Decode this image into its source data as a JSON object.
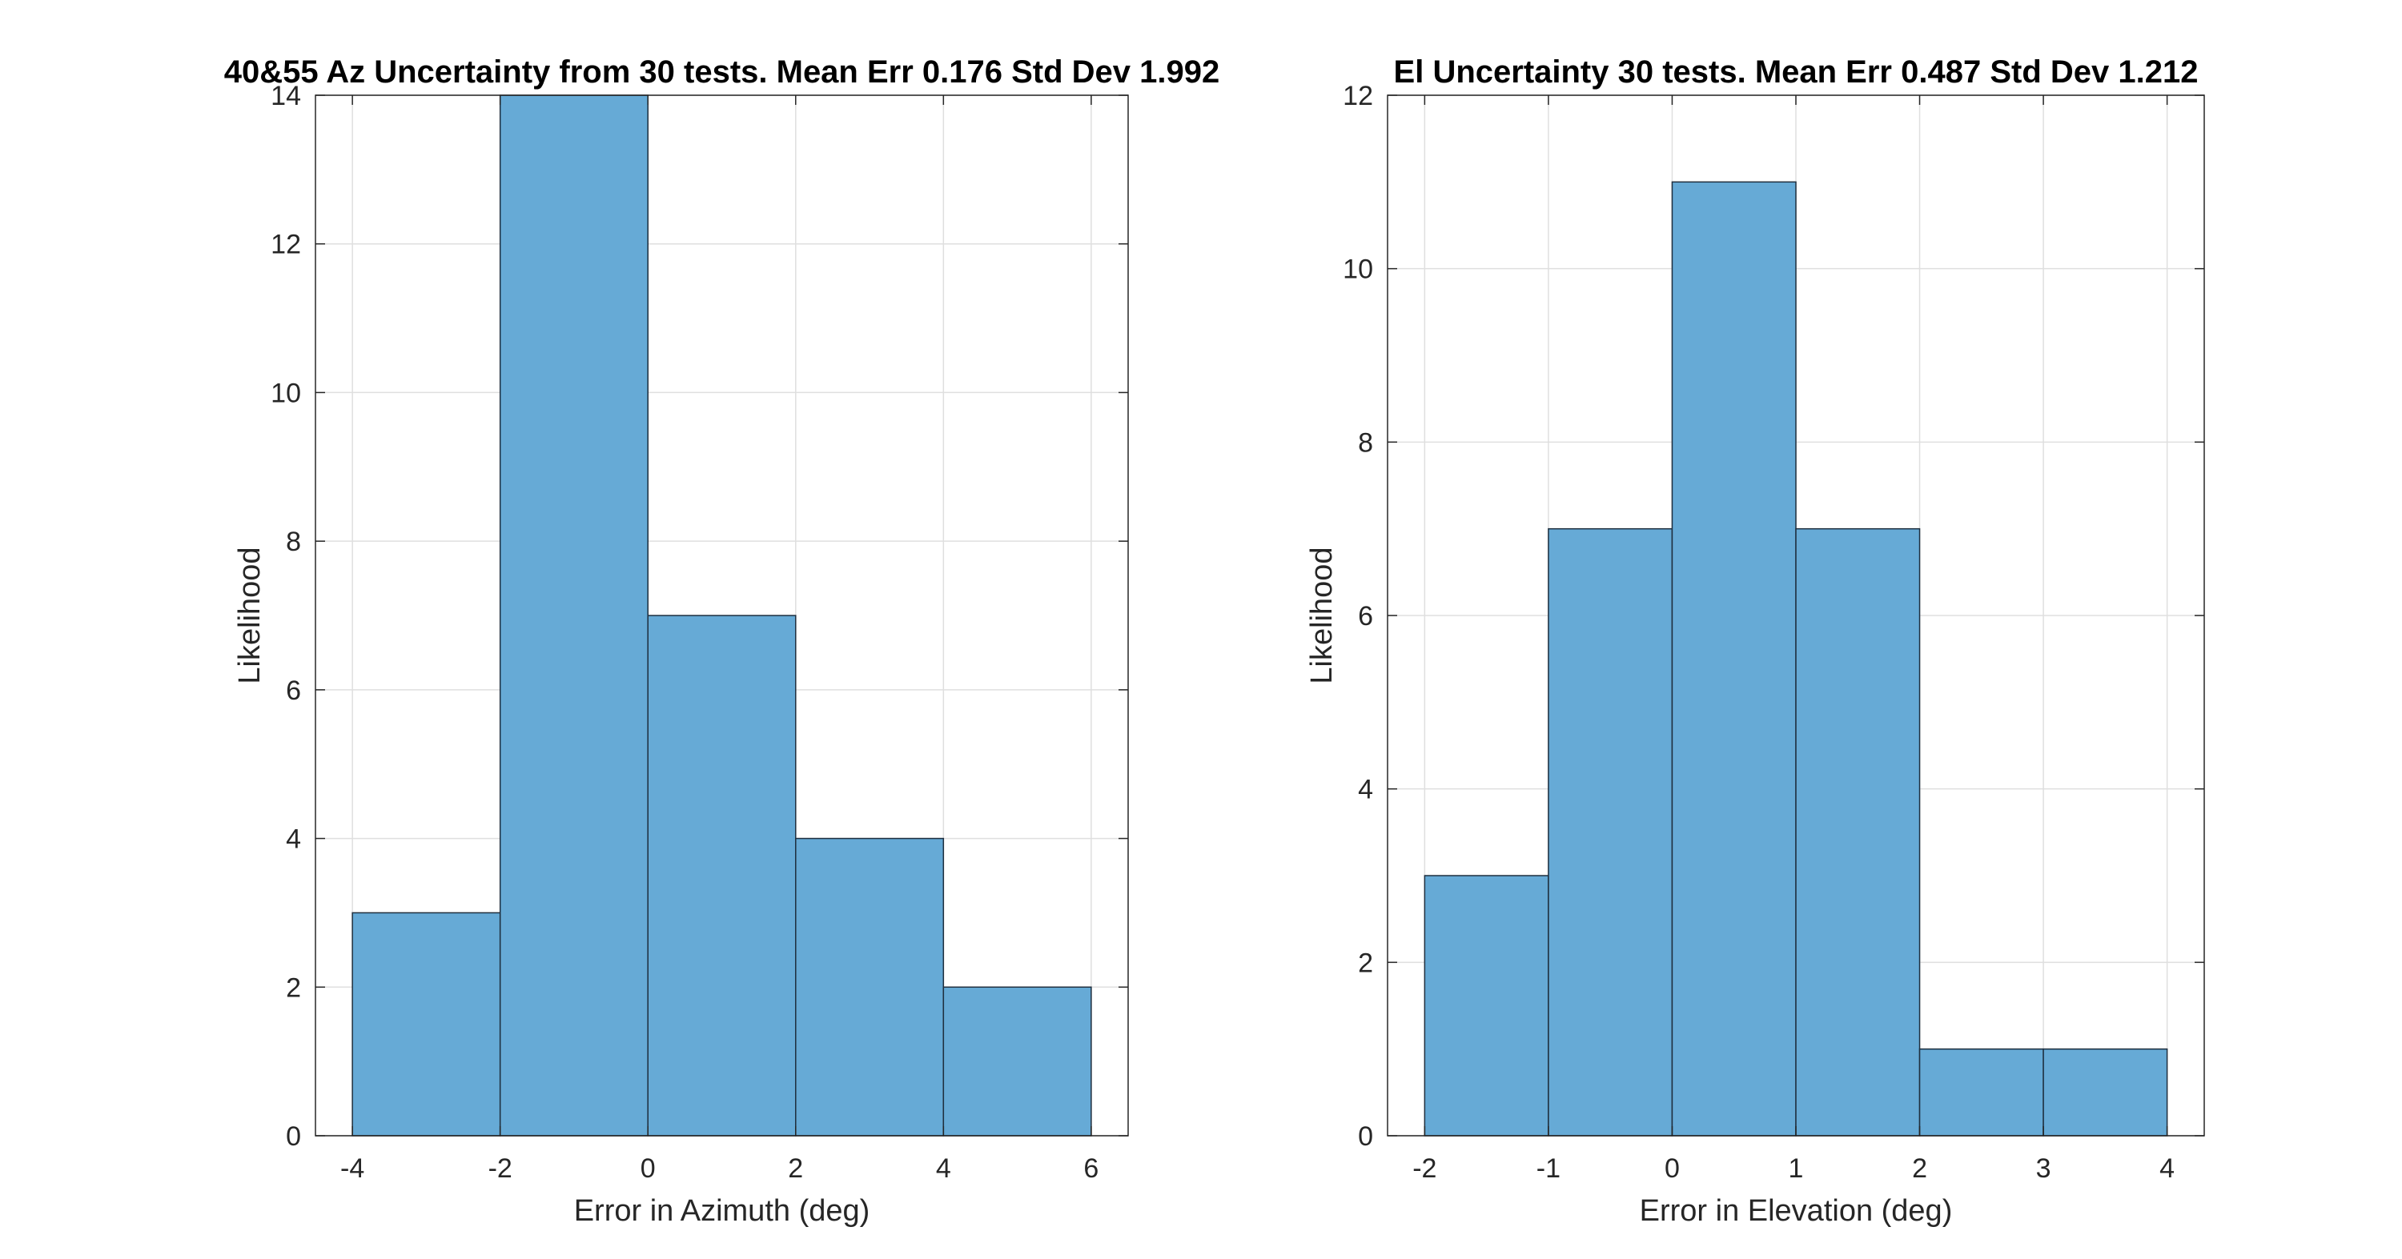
{
  "figure": {
    "background": "#ffffff"
  },
  "chart_data": [
    {
      "type": "bar",
      "subtype": "histogram",
      "title": "40&55 Az Uncertainty from 30 tests. Mean Err 0.176 Std Dev 1.992",
      "xlabel": "Error in Azimuth (deg)",
      "ylabel": "Likelihood",
      "bin_edges": [
        -4,
        -2,
        0,
        2,
        4,
        6
      ],
      "values": [
        3,
        14,
        7,
        4,
        2
      ],
      "xlim": [
        -4.5,
        6.5
      ],
      "ylim": [
        0,
        14
      ],
      "xticks": [
        -4,
        -2,
        0,
        2,
        4,
        6
      ],
      "yticks": [
        0,
        2,
        4,
        6,
        8,
        10,
        12,
        14
      ],
      "grid": true,
      "bar_color": "#66aad6",
      "edge_color": "#1f2f3f"
    },
    {
      "type": "bar",
      "subtype": "histogram",
      "title": "El Uncertainty 30 tests. Mean Err 0.487 Std Dev 1.212",
      "xlabel": "Error in Elevation (deg)",
      "ylabel": "Likelihood",
      "bin_edges": [
        -2,
        -1,
        0,
        1,
        2,
        3,
        4
      ],
      "values": [
        3,
        7,
        11,
        7,
        1,
        1
      ],
      "xlim": [
        -2.3,
        4.3
      ],
      "ylim": [
        0,
        12
      ],
      "xticks": [
        -2,
        -1,
        0,
        1,
        2,
        3,
        4
      ],
      "yticks": [
        0,
        2,
        4,
        6,
        8,
        10,
        12
      ],
      "grid": true,
      "bar_color": "#66aad6",
      "edge_color": "#1f2f3f"
    }
  ]
}
